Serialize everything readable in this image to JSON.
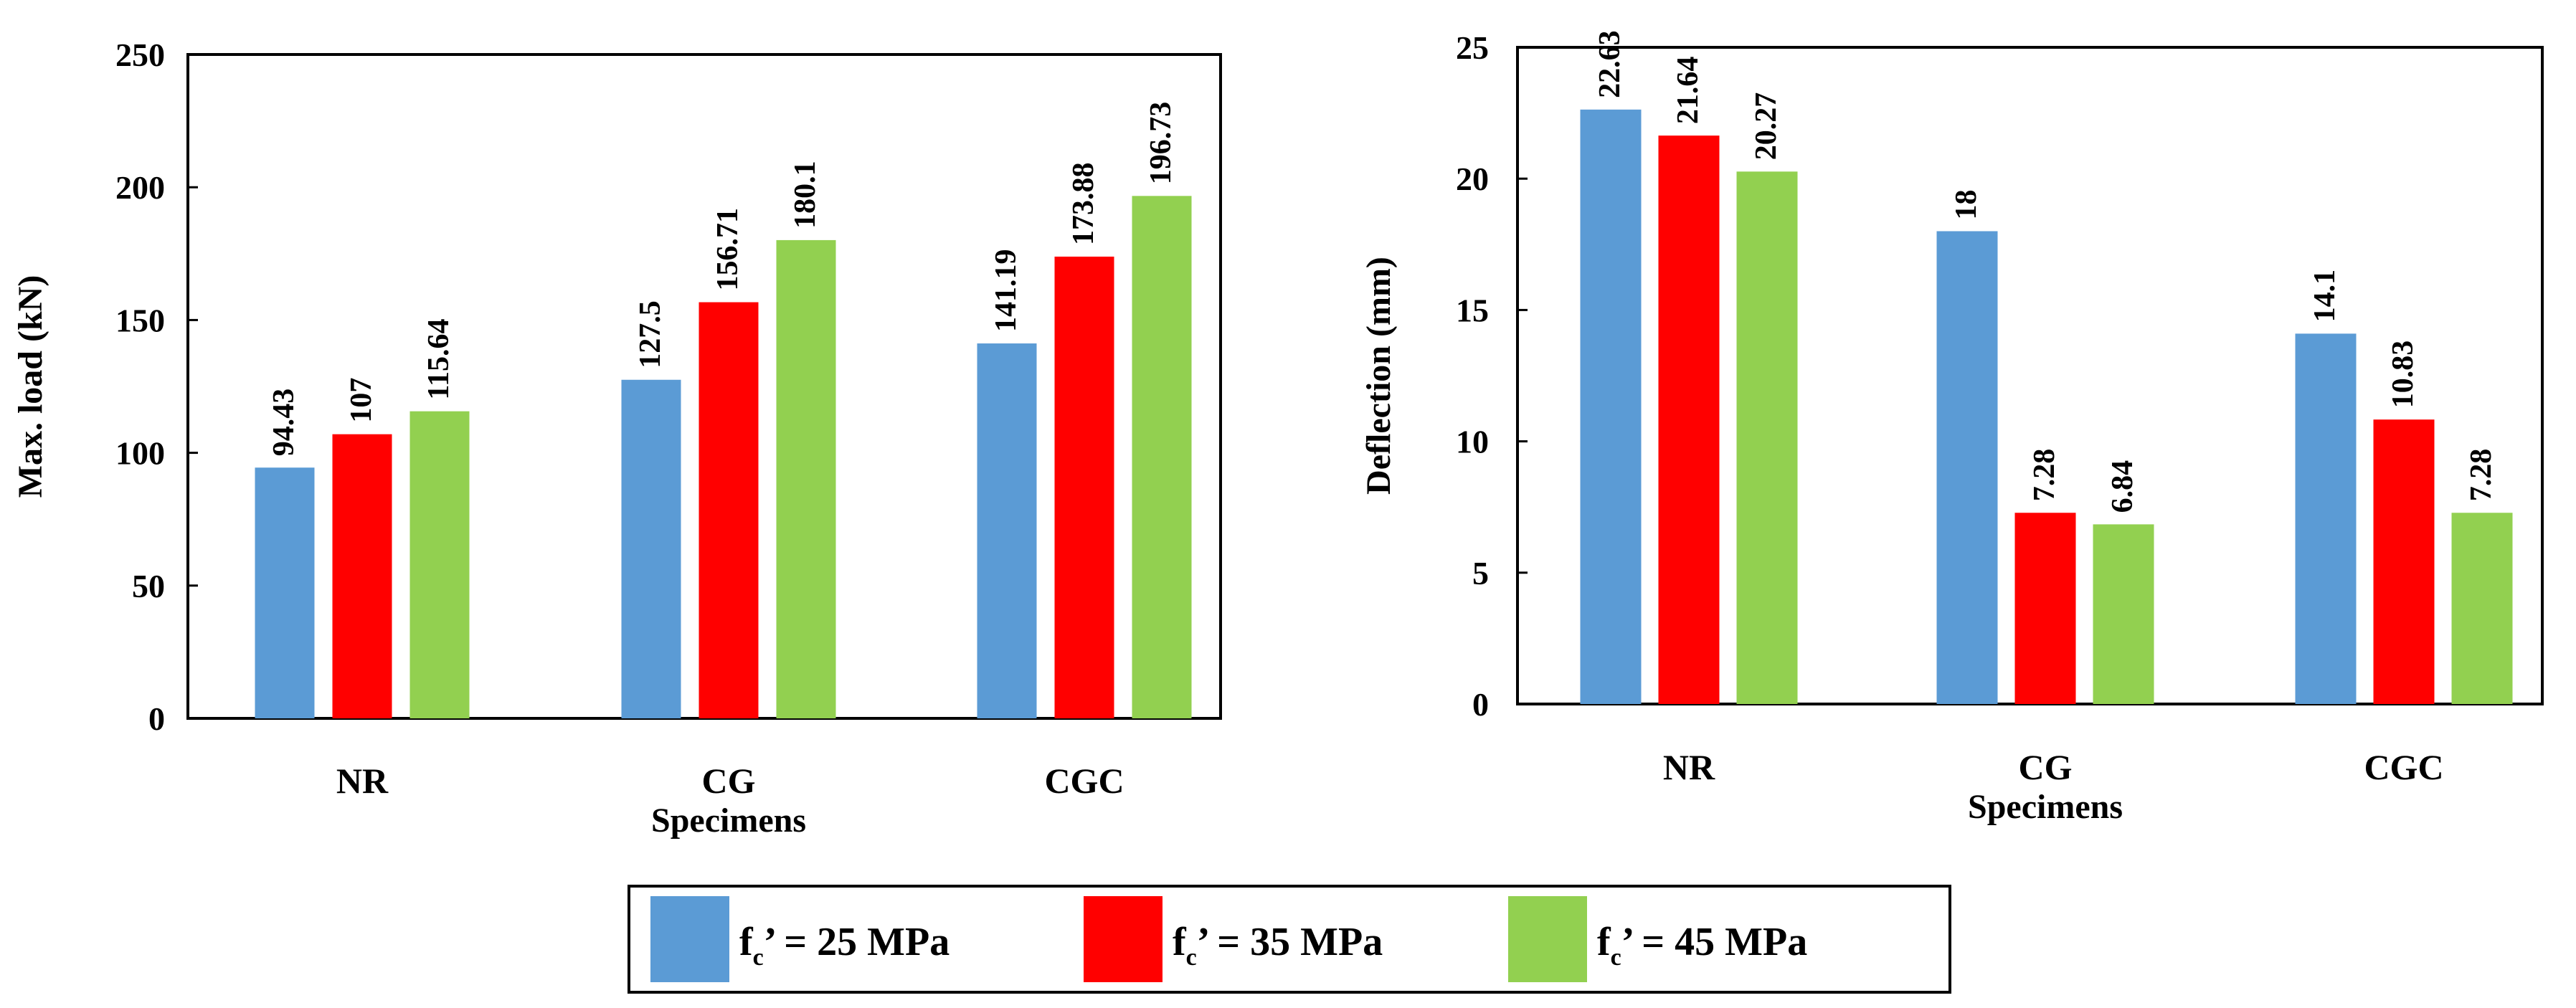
{
  "colors": {
    "s25": "#5b9bd5",
    "s35": "#ff0000",
    "s45": "#92d050"
  },
  "legend": [
    {
      "prefix": "f",
      "sub": "c",
      "text": "’ = 25 MPa",
      "color_key": "s25"
    },
    {
      "prefix": "f",
      "sub": "c",
      "text": "’ = 35 MPa",
      "color_key": "s35"
    },
    {
      "prefix": "f",
      "sub": "c",
      "text": "’ = 45 MPa",
      "color_key": "s45"
    }
  ],
  "chart_data": [
    {
      "type": "bar",
      "title": "",
      "xlabel": "Specimens",
      "ylabel": "Max. load (kN)",
      "categories": [
        "NR",
        "CG",
        "CGC"
      ],
      "ylim": [
        0,
        250
      ],
      "yticks": [
        0,
        50,
        100,
        150,
        200,
        250
      ],
      "series": [
        {
          "name": "fc’ = 25 MPa",
          "color_key": "s25",
          "values": [
            94.43,
            127.5,
            141.19
          ],
          "labels": [
            "94.43",
            "127.5",
            "141.19"
          ]
        },
        {
          "name": "fc’ = 35 MPa",
          "color_key": "s35",
          "values": [
            107,
            156.71,
            173.88
          ],
          "labels": [
            "107",
            "156.71",
            "173.88"
          ]
        },
        {
          "name": "fc’ = 45 MPa",
          "color_key": "s45",
          "values": [
            115.64,
            180.1,
            196.73
          ],
          "labels": [
            "115.64",
            "180.1",
            "196.73"
          ]
        }
      ]
    },
    {
      "type": "bar",
      "title": "",
      "xlabel": "Specimens",
      "ylabel": "Deflection (mm)",
      "categories": [
        "NR",
        "CG",
        "CGC"
      ],
      "ylim": [
        0,
        25
      ],
      "yticks": [
        0,
        5,
        10,
        15,
        20,
        25
      ],
      "series": [
        {
          "name": "fc’ = 25 MPa",
          "color_key": "s25",
          "values": [
            22.63,
            18,
            14.1
          ],
          "labels": [
            "22.63",
            "18",
            "14.1"
          ]
        },
        {
          "name": "fc’ = 35 MPa",
          "color_key": "s35",
          "values": [
            21.64,
            7.28,
            10.83
          ],
          "labels": [
            "21.64",
            "7.28",
            "10.83"
          ]
        },
        {
          "name": "fc’ = 45 MPa",
          "color_key": "s45",
          "values": [
            20.27,
            6.84,
            7.28
          ],
          "labels": [
            "20.27",
            "6.84",
            "7.28"
          ]
        }
      ]
    }
  ]
}
